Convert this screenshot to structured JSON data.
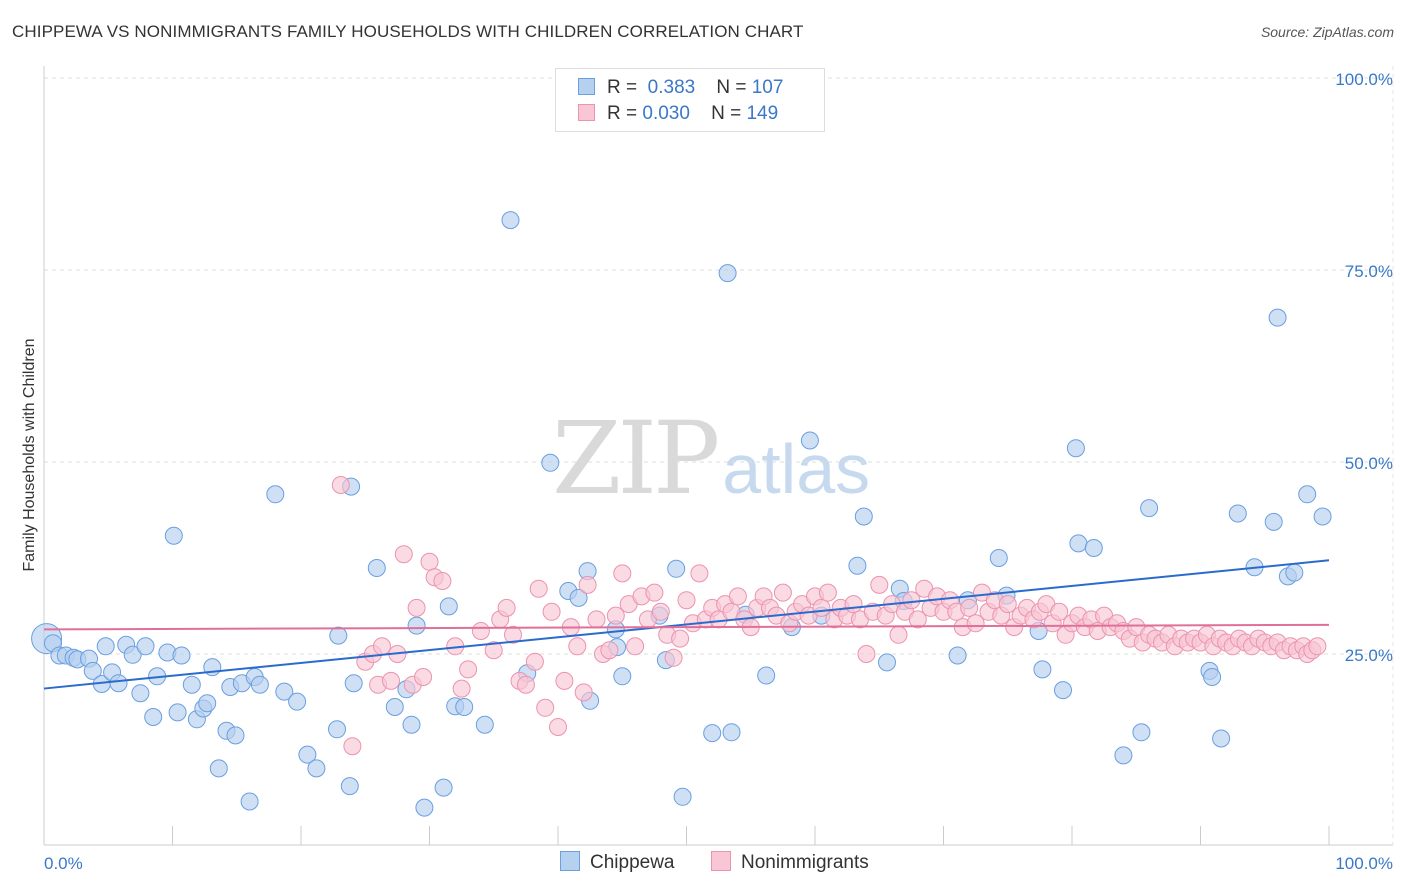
{
  "title": "CHIPPEWA VS NONIMMIGRANTS FAMILY HOUSEHOLDS WITH CHILDREN CORRELATION CHART",
  "source": "Source: ZipAtlas.com",
  "watermark": {
    "zip": "ZIP",
    "atlas": "atlas"
  },
  "legend": {
    "r_label": "R =",
    "n_label": "N =",
    "rows": [
      {
        "r": "0.383",
        "n": "107",
        "fill": "#b6d0f0",
        "stroke": "#6a9fe0"
      },
      {
        "r": "0.030",
        "n": "149",
        "fill": "#f8c6d4",
        "stroke": "#ec93af"
      }
    ]
  },
  "bottom_legend": [
    {
      "label": "Chippewa",
      "fill": "#b6d0f0",
      "stroke": "#6a9fe0"
    },
    {
      "label": "Nonimmigrants",
      "fill": "#f8c6d4",
      "stroke": "#ec93af"
    }
  ],
  "chart_data": {
    "type": "scatter",
    "xlabel": "",
    "ylabel": "Family Households with Children",
    "xlim": [
      0,
      100
    ],
    "ylim": [
      0,
      100
    ],
    "x_tick_labels": [
      {
        "value": 0,
        "label": "0.0%"
      },
      {
        "value": 100,
        "label": "100.0%"
      }
    ],
    "y_tick_labels": [
      {
        "value": 25,
        "label": "25.0%"
      },
      {
        "value": 50,
        "label": "50.0%"
      },
      {
        "value": 75,
        "label": "75.0%"
      },
      {
        "value": 100,
        "label": "100.0%"
      }
    ],
    "grid": "horizontal dashed",
    "series": [
      {
        "name": "Chippewa",
        "color": "#6a9fe0",
        "fill": "#b6d0f0",
        "trend": {
          "x": [
            0,
            100
          ],
          "y": [
            20.5,
            37.2
          ],
          "color": "#2a6bcc"
        },
        "points": [
          [
            0.2,
            27.0
          ],
          [
            0.7,
            26.4
          ],
          [
            1.2,
            24.8
          ],
          [
            1.7,
            24.8
          ],
          [
            2.3,
            24.5
          ],
          [
            2.6,
            24.3
          ],
          [
            3.5,
            24.4
          ],
          [
            3.8,
            22.8
          ],
          [
            4.5,
            21.1
          ],
          [
            4.8,
            26.0
          ],
          [
            5.3,
            22.6
          ],
          [
            5.8,
            21.2
          ],
          [
            6.4,
            26.2
          ],
          [
            6.9,
            24.9
          ],
          [
            7.5,
            19.9
          ],
          [
            7.9,
            26.0
          ],
          [
            8.5,
            16.8
          ],
          [
            8.8,
            22.1
          ],
          [
            9.6,
            25.2
          ],
          [
            10.1,
            40.4
          ],
          [
            10.4,
            17.4
          ],
          [
            10.7,
            24.8
          ],
          [
            11.5,
            21.0
          ],
          [
            11.9,
            16.5
          ],
          [
            12.4,
            17.9
          ],
          [
            12.7,
            18.6
          ],
          [
            13.1,
            23.3
          ],
          [
            13.6,
            10.1
          ],
          [
            14.2,
            15.0
          ],
          [
            14.5,
            20.7
          ],
          [
            14.9,
            14.4
          ],
          [
            15.4,
            21.2
          ],
          [
            16.0,
            5.8
          ],
          [
            16.4,
            22.0
          ],
          [
            16.8,
            21.0
          ],
          [
            18.0,
            45.8
          ],
          [
            18.7,
            20.1
          ],
          [
            19.7,
            18.8
          ],
          [
            20.5,
            11.9
          ],
          [
            21.2,
            10.1
          ],
          [
            22.8,
            15.2
          ],
          [
            22.9,
            27.4
          ],
          [
            23.8,
            7.8
          ],
          [
            23.9,
            46.8
          ],
          [
            24.1,
            21.2
          ],
          [
            25.9,
            36.2
          ],
          [
            27.3,
            18.1
          ],
          [
            28.2,
            20.4
          ],
          [
            28.6,
            15.8
          ],
          [
            29.0,
            28.7
          ],
          [
            29.6,
            5.0
          ],
          [
            31.1,
            7.6
          ],
          [
            31.5,
            31.2
          ],
          [
            32.0,
            18.2
          ],
          [
            32.7,
            18.1
          ],
          [
            34.3,
            15.8
          ],
          [
            36.3,
            81.5
          ],
          [
            37.6,
            22.5
          ],
          [
            39.4,
            49.9
          ],
          [
            40.8,
            33.2
          ],
          [
            41.6,
            32.3
          ],
          [
            42.3,
            35.8
          ],
          [
            42.5,
            18.9
          ],
          [
            44.5,
            28.2
          ],
          [
            44.6,
            25.9
          ],
          [
            45.0,
            22.1
          ],
          [
            47.9,
            30.0
          ],
          [
            48.4,
            24.2
          ],
          [
            49.2,
            36.1
          ],
          [
            49.7,
            6.4
          ],
          [
            52.0,
            14.7
          ],
          [
            53.2,
            74.6
          ],
          [
            53.5,
            14.8
          ],
          [
            54.6,
            30.1
          ],
          [
            56.2,
            22.2
          ],
          [
            58.2,
            28.5
          ],
          [
            59.6,
            52.8
          ],
          [
            60.5,
            30.0
          ],
          [
            63.3,
            36.5
          ],
          [
            63.8,
            42.9
          ],
          [
            65.6,
            23.9
          ],
          [
            66.6,
            33.5
          ],
          [
            66.9,
            31.9
          ],
          [
            71.1,
            24.8
          ],
          [
            71.9,
            32.0
          ],
          [
            74.3,
            37.5
          ],
          [
            74.9,
            32.6
          ],
          [
            77.4,
            28.0
          ],
          [
            77.7,
            23.0
          ],
          [
            79.3,
            20.3
          ],
          [
            80.3,
            51.8
          ],
          [
            80.5,
            39.4
          ],
          [
            81.7,
            38.8
          ],
          [
            84.0,
            11.8
          ],
          [
            85.4,
            14.8
          ],
          [
            86.0,
            44.0
          ],
          [
            90.7,
            22.8
          ],
          [
            90.9,
            22.0
          ],
          [
            91.6,
            14.0
          ],
          [
            92.9,
            43.3
          ],
          [
            94.2,
            36.3
          ],
          [
            95.7,
            42.2
          ],
          [
            96.0,
            68.8
          ],
          [
            96.8,
            35.1
          ],
          [
            97.3,
            35.6
          ],
          [
            98.3,
            45.8
          ],
          [
            99.5,
            42.9
          ]
        ]
      },
      {
        "name": "Nonimmigrants",
        "color": "#ec93af",
        "fill": "#f8c6d4",
        "trend": {
          "x": [
            0,
            100
          ],
          "y": [
            28.2,
            28.8
          ],
          "color": "#e0709a"
        },
        "points": [
          [
            23.1,
            47.0
          ],
          [
            24.0,
            13.0
          ],
          [
            25.0,
            24.0
          ],
          [
            25.6,
            25.0
          ],
          [
            26.0,
            21.0
          ],
          [
            26.3,
            26.0
          ],
          [
            27.0,
            21.5
          ],
          [
            27.5,
            25.0
          ],
          [
            28.0,
            38.0
          ],
          [
            28.7,
            21.0
          ],
          [
            29.0,
            31.0
          ],
          [
            29.5,
            22.0
          ],
          [
            30.0,
            37.0
          ],
          [
            30.4,
            35.0
          ],
          [
            31.0,
            34.5
          ],
          [
            32.0,
            26.0
          ],
          [
            32.5,
            20.5
          ],
          [
            33.0,
            23.0
          ],
          [
            34.0,
            28.0
          ],
          [
            35.0,
            25.5
          ],
          [
            35.5,
            29.5
          ],
          [
            36.0,
            31.0
          ],
          [
            36.5,
            27.5
          ],
          [
            37.0,
            21.5
          ],
          [
            37.5,
            21.0
          ],
          [
            38.2,
            24.0
          ],
          [
            38.5,
            33.5
          ],
          [
            39.0,
            18.0
          ],
          [
            39.5,
            30.5
          ],
          [
            40.0,
            15.5
          ],
          [
            40.5,
            21.5
          ],
          [
            41.0,
            28.5
          ],
          [
            41.5,
            26.0
          ],
          [
            42.0,
            20.0
          ],
          [
            42.3,
            34.0
          ],
          [
            43.0,
            29.5
          ],
          [
            43.5,
            25.0
          ],
          [
            44.0,
            25.5
          ],
          [
            44.5,
            30.0
          ],
          [
            45.0,
            35.5
          ],
          [
            45.5,
            31.5
          ],
          [
            46.0,
            26.0
          ],
          [
            46.5,
            32.5
          ],
          [
            47.0,
            29.5
          ],
          [
            47.5,
            33.0
          ],
          [
            48.0,
            30.5
          ],
          [
            48.5,
            27.5
          ],
          [
            49.0,
            24.5
          ],
          [
            49.5,
            27.0
          ],
          [
            50.0,
            32.0
          ],
          [
            50.5,
            29.0
          ],
          [
            51.0,
            35.5
          ],
          [
            51.5,
            29.5
          ],
          [
            52.0,
            31.0
          ],
          [
            52.5,
            29.5
          ],
          [
            53.0,
            31.5
          ],
          [
            53.5,
            30.5
          ],
          [
            54.0,
            32.5
          ],
          [
            54.5,
            29.5
          ],
          [
            55.0,
            28.5
          ],
          [
            55.5,
            31.0
          ],
          [
            56.0,
            32.5
          ],
          [
            56.5,
            31.0
          ],
          [
            57.0,
            30.0
          ],
          [
            57.5,
            33.0
          ],
          [
            58.0,
            29.0
          ],
          [
            58.5,
            30.5
          ],
          [
            59.0,
            31.5
          ],
          [
            59.5,
            30.0
          ],
          [
            60.0,
            32.5
          ],
          [
            60.5,
            31.0
          ],
          [
            61.0,
            33.0
          ],
          [
            61.5,
            29.5
          ],
          [
            62.0,
            31.0
          ],
          [
            62.5,
            30.0
          ],
          [
            63.0,
            31.5
          ],
          [
            63.5,
            29.5
          ],
          [
            64.0,
            25.0
          ],
          [
            64.5,
            30.5
          ],
          [
            65.0,
            34.0
          ],
          [
            65.5,
            30.0
          ],
          [
            66.0,
            31.5
          ],
          [
            66.5,
            27.5
          ],
          [
            67.0,
            30.5
          ],
          [
            67.5,
            32.0
          ],
          [
            68.0,
            29.5
          ],
          [
            68.5,
            33.5
          ],
          [
            69.0,
            31.0
          ],
          [
            69.5,
            32.5
          ],
          [
            70.0,
            30.5
          ],
          [
            70.5,
            32.0
          ],
          [
            71.0,
            30.5
          ],
          [
            71.5,
            28.5
          ],
          [
            72.0,
            31.0
          ],
          [
            72.5,
            29.0
          ],
          [
            73.0,
            33.0
          ],
          [
            73.5,
            30.5
          ],
          [
            74.0,
            32.0
          ],
          [
            74.5,
            30.0
          ],
          [
            75.0,
            31.5
          ],
          [
            75.5,
            28.5
          ],
          [
            76.0,
            30.0
          ],
          [
            76.5,
            31.0
          ],
          [
            77.0,
            29.5
          ],
          [
            77.5,
            30.5
          ],
          [
            78.0,
            31.5
          ],
          [
            78.5,
            29.0
          ],
          [
            79.0,
            30.5
          ],
          [
            79.5,
            27.5
          ],
          [
            80.0,
            29.0
          ],
          [
            80.5,
            30.0
          ],
          [
            81.0,
            28.5
          ],
          [
            81.5,
            29.5
          ],
          [
            82.0,
            28.0
          ],
          [
            82.5,
            30.0
          ],
          [
            83.0,
            28.5
          ],
          [
            83.5,
            29.0
          ],
          [
            84.0,
            28.0
          ],
          [
            84.5,
            27.0
          ],
          [
            85.0,
            28.5
          ],
          [
            85.5,
            26.5
          ],
          [
            86.0,
            27.5
          ],
          [
            86.5,
            27.0
          ],
          [
            87.0,
            26.5
          ],
          [
            87.5,
            27.5
          ],
          [
            88.0,
            26.0
          ],
          [
            88.5,
            27.0
          ],
          [
            89.0,
            26.5
          ],
          [
            89.5,
            27.0
          ],
          [
            90.0,
            26.5
          ],
          [
            90.5,
            27.5
          ],
          [
            91.0,
            26.0
          ],
          [
            91.5,
            27.0
          ],
          [
            92.0,
            26.5
          ],
          [
            92.5,
            26.0
          ],
          [
            93.0,
            27.0
          ],
          [
            93.5,
            26.5
          ],
          [
            94.0,
            26.0
          ],
          [
            94.5,
            27.0
          ],
          [
            95.0,
            26.5
          ],
          [
            95.5,
            26.0
          ],
          [
            96.0,
            26.5
          ],
          [
            96.5,
            25.5
          ],
          [
            97.0,
            26.0
          ],
          [
            97.5,
            25.5
          ],
          [
            98.0,
            26.0
          ],
          [
            98.3,
            25.0
          ],
          [
            98.7,
            25.5
          ],
          [
            99.1,
            26.0
          ]
        ]
      }
    ]
  }
}
